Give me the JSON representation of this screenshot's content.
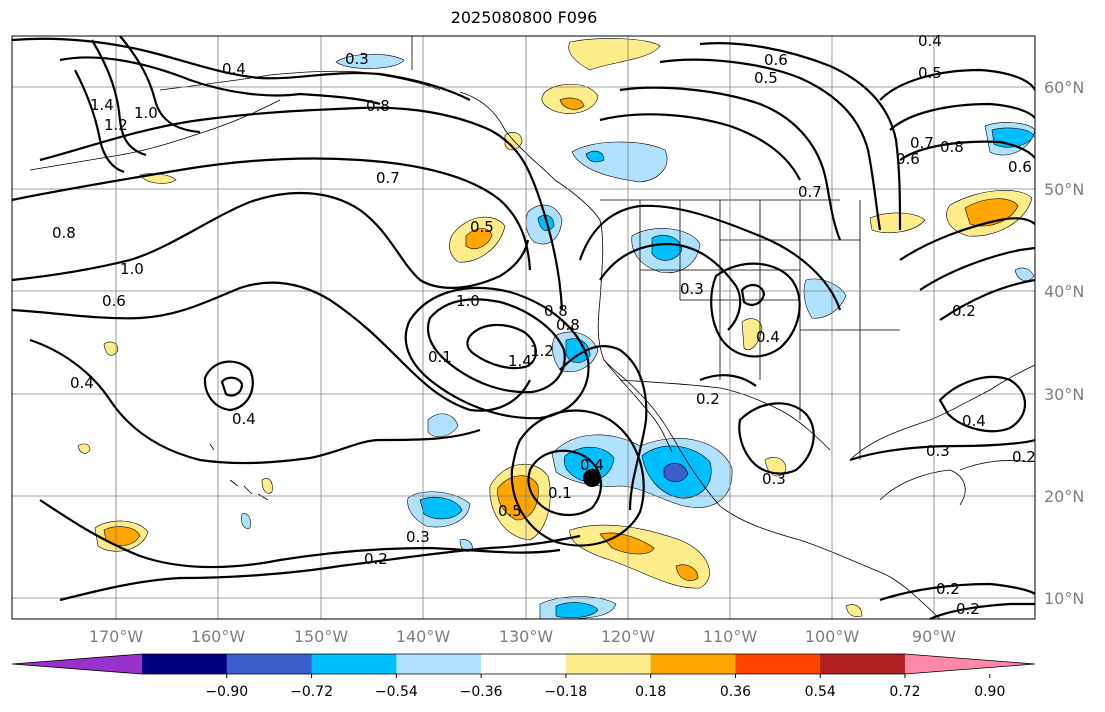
{
  "title": "2025080800 F096",
  "lat_labels": [
    "60°N",
    "50°N",
    "40°N",
    "30°N",
    "20°N",
    "10°N"
  ],
  "lon_labels": [
    "170°W",
    "160°W",
    "150°W",
    "140°W",
    "130°W",
    "120°W",
    "110°W",
    "100°W",
    "90°W"
  ],
  "contour_labels": [
    "0.3",
    "0.4",
    "1.4",
    "1.2",
    "1.0",
    "0.8",
    "0.7",
    "0.6",
    "0.5",
    "0.8",
    "0.7",
    "0.6",
    "0.4",
    "0.5",
    "0.6",
    "0.7",
    "0.8",
    "0.4",
    "0.5",
    "1.0",
    "0.6",
    "0.4",
    "0.4",
    "0.1",
    "0.8",
    "1.0",
    "1.4",
    "1.2",
    "0.8",
    "0.4",
    "0.3",
    "0.2",
    "0.5",
    "0.1",
    "0.3",
    "0.2",
    "0.3",
    "0.4",
    "0.3",
    "0.2",
    "0.2",
    "0.2",
    "0.2"
  ],
  "colorbar": {
    "tick_labels": [
      "−0.90",
      "−0.72",
      "−0.54",
      "−0.36",
      "−0.18",
      "0.18",
      "0.36",
      "0.54",
      "0.72",
      "0.90"
    ],
    "colors": [
      "#9932cc",
      "#000080",
      "#3a5fcd",
      "#00bfff",
      "#b0e2ff",
      "#ffffff",
      "#ffec8b",
      "#ffa500",
      "#ff4500",
      "#b22222",
      "#ff88aa"
    ]
  }
}
